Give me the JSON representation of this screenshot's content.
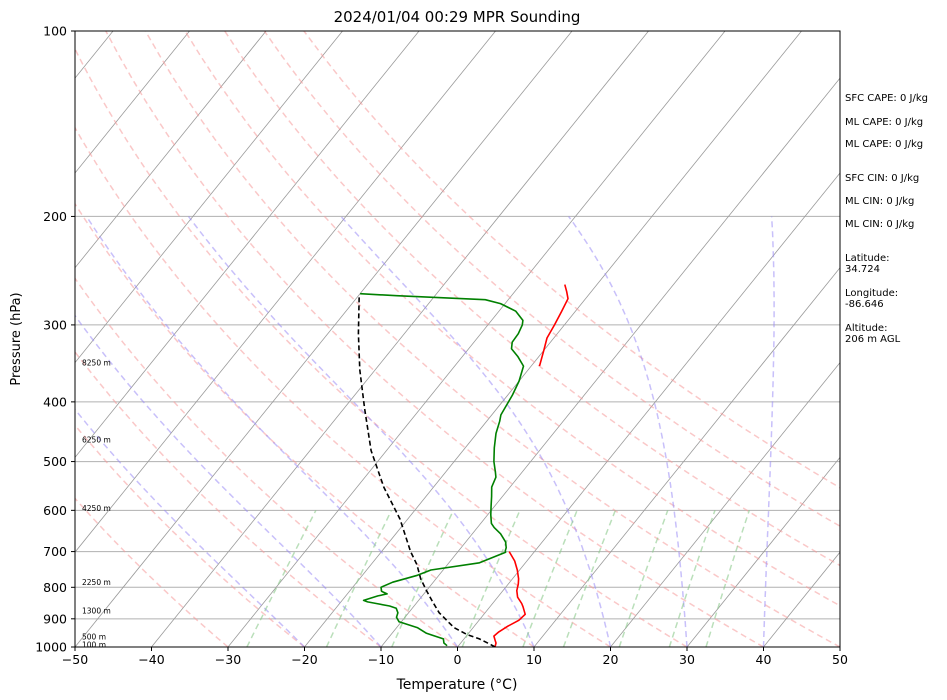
{
  "chart_data": {
    "type": "line",
    "chart_kind": "skew-t",
    "title": "2024/01/04 00:29 MPR Sounding",
    "xlabel": "Temperature (°C)",
    "ylabel": "Pressure (hPa)",
    "xlim": [
      -50,
      50
    ],
    "ylim": [
      1000,
      100
    ],
    "y_scale": "log",
    "x_ticks": [
      -50,
      -40,
      -30,
      -20,
      -10,
      0,
      10,
      20,
      30,
      40,
      50
    ],
    "x_tick_labels": [
      "−50",
      "−40",
      "−30",
      "−20",
      "−10",
      "0",
      "10",
      "20",
      "30",
      "40",
      "50"
    ],
    "y_ticks": [
      1000,
      900,
      800,
      700,
      600,
      500,
      400,
      300,
      200,
      100
    ],
    "y_tick_labels": [
      "1000",
      "900",
      "800",
      "700",
      "600",
      "500",
      "400",
      "300",
      "200",
      "100"
    ],
    "grid": true,
    "series": [
      {
        "kind": "temperature",
        "color": "#ff0000",
        "points": [
          [
            4.9,
            1000
          ],
          [
            4.6,
            985
          ],
          [
            4.2,
            975
          ],
          [
            3.6,
            960
          ],
          [
            3.8,
            945
          ],
          [
            4.4,
            925
          ],
          [
            5.2,
            905
          ],
          [
            5.4,
            885
          ],
          [
            4.3,
            860
          ],
          [
            3.8,
            850
          ],
          [
            2.6,
            830
          ],
          [
            1.8,
            810
          ],
          [
            1.3,
            790
          ],
          [
            0.8,
            775
          ],
          [
            -0.3,
            750
          ],
          [
            -1.6,
            725
          ],
          [
            -3.3,
            700
          ]
        ]
      },
      {
        "kind": "dewpoint",
        "color": "#008000",
        "points": [
          [
            -1.5,
            995
          ],
          [
            -2.2,
            985
          ],
          [
            -2.7,
            970
          ],
          [
            -5.5,
            950
          ],
          [
            -7.3,
            930
          ],
          [
            -10.3,
            910
          ],
          [
            -11.1,
            895
          ],
          [
            -11.4,
            880
          ],
          [
            -12.1,
            865
          ],
          [
            -13.2,
            858
          ],
          [
            -15.2,
            850
          ],
          [
            -16.5,
            845
          ],
          [
            -17.2,
            840
          ],
          [
            -15.8,
            826
          ],
          [
            -14.8,
            820
          ],
          [
            -15.8,
            812
          ],
          [
            -16.3,
            800
          ],
          [
            -15.3,
            785
          ],
          [
            -12.8,
            765
          ],
          [
            -11.6,
            750
          ],
          [
            -6.0,
            730
          ],
          [
            -3.7,
            702
          ],
          [
            -3.9,
            698
          ],
          [
            -4.1,
            690
          ],
          [
            -4.8,
            675
          ],
          [
            -6.3,
            655
          ],
          [
            -7.8,
            640
          ],
          [
            -8.6,
            630
          ],
          [
            -9.6,
            610
          ],
          [
            -10.5,
            590
          ],
          [
            -11.4,
            570
          ],
          [
            -12.4,
            550
          ],
          [
            -12.9,
            530
          ],
          [
            -13.5,
            520
          ],
          [
            -14.8,
            500
          ],
          [
            -16.2,
            475
          ],
          [
            -17.5,
            450
          ],
          [
            -18.3,
            430
          ],
          [
            -18.8,
            420
          ],
          [
            -19.4,
            390
          ],
          [
            -20.0,
            370
          ],
          [
            -21.0,
            350
          ],
          [
            -22.7,
            338
          ],
          [
            -24.4,
            328
          ],
          [
            -25.0,
            320
          ],
          [
            -25.1,
            310
          ],
          [
            -25.5,
            300
          ],
          [
            -25.9,
            295
          ],
          [
            -27.8,
            285
          ],
          [
            -30.6,
            277
          ],
          [
            -33.0,
            273
          ],
          [
            -39.0,
            271
          ],
          [
            -45.0,
            269
          ],
          [
            -50.0,
            267
          ]
        ]
      },
      {
        "kind": "temperature-upper",
        "color": "#ff0000",
        "points": [
          [
            -18.9,
            350
          ],
          [
            -20.0,
            330
          ],
          [
            -20.9,
            315
          ],
          [
            -21.3,
            300
          ],
          [
            -21.8,
            285
          ],
          [
            -22.3,
            272
          ],
          [
            -23.2,
            265
          ],
          [
            -24.2,
            258
          ]
        ]
      },
      {
        "kind": "parcel",
        "color": "#000000",
        "style": "dashed",
        "points": [
          [
            4.9,
            1000
          ],
          [
            4.0,
            990
          ],
          [
            2.0,
            970
          ],
          [
            0.0,
            955
          ],
          [
            -2.5,
            930
          ],
          [
            -6.0,
            880
          ],
          [
            -8.0,
            845
          ],
          [
            -10.0,
            810
          ],
          [
            -12.0,
            775
          ],
          [
            -14.0,
            735
          ],
          [
            -16.2,
            700
          ],
          [
            -21.0,
            620
          ],
          [
            -26.5,
            550
          ],
          [
            -32.0,
            480
          ],
          [
            -37.3,
            410
          ],
          [
            -42.0,
            355
          ],
          [
            -46.0,
            310
          ],
          [
            -50.0,
            268
          ]
        ]
      }
    ],
    "height_labels": [
      "100 m",
      "500 m",
      "1300 m",
      "2250 m",
      "4250 m",
      "6250 m",
      "8250 m"
    ],
    "height_label_pressures": [
      990,
      962,
      872,
      785,
      595,
      460,
      345
    ],
    "skew_per_decade_deg": 38.9,
    "isotherms_step": 10,
    "dry_adiabat_thetas_c": [
      -30,
      -20,
      -10,
      0,
      10,
      20,
      30,
      40,
      50,
      60,
      70,
      80,
      90
    ],
    "moist_adiabat_starts_c": [
      -20,
      -10,
      0,
      10,
      20,
      30,
      40,
      50
    ],
    "mixing_ratios_gkg": [
      0.4,
      1,
      2,
      4,
      7,
      10,
      16,
      24,
      32
    ],
    "colors": {
      "temperature": "#ff0000",
      "dewpoint": "#008000",
      "parcel": "#000000",
      "dry_adiabat": "#f59b9b",
      "moist_adiabat": "#9b8cf5",
      "mixing_ratio": "#8cc98c",
      "isotherm": "#9a9a9a"
    }
  },
  "side_panel": {
    "sfc_cape": "SFC CAPE: 0 J/kg",
    "ml_cape_1": "ML CAPE: 0 J/kg",
    "ml_cape_2": "ML CAPE: 0 J/kg",
    "sfc_cin": "SFC CIN: 0 J/kg",
    "ml_cin_1": "ML CIN: 0 J/kg",
    "ml_cin_2": "ML CIN: 0 J/kg",
    "latitude_label": "Latitude:",
    "latitude_value": "34.724",
    "longitude_label": "Longitude:",
    "longitude_value": "-86.646",
    "altitude_label": "Altitude:",
    "altitude_value": "206 m AGL"
  }
}
